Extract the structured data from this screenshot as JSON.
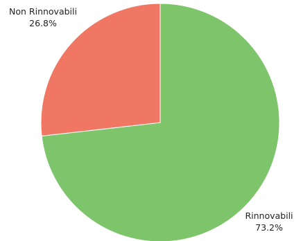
{
  "chart_data": {
    "type": "pie",
    "title": "",
    "slices": [
      {
        "label": "Rinnovabili",
        "value": 73.2,
        "value_label": "73.2%",
        "color": "#7ec46a"
      },
      {
        "label": "Non Rinnovabili",
        "value": 26.8,
        "value_label": "26.8%",
        "color": "#f07763"
      }
    ],
    "start_angle": "12 o'clock",
    "direction": "clockwise",
    "legend": "none"
  }
}
